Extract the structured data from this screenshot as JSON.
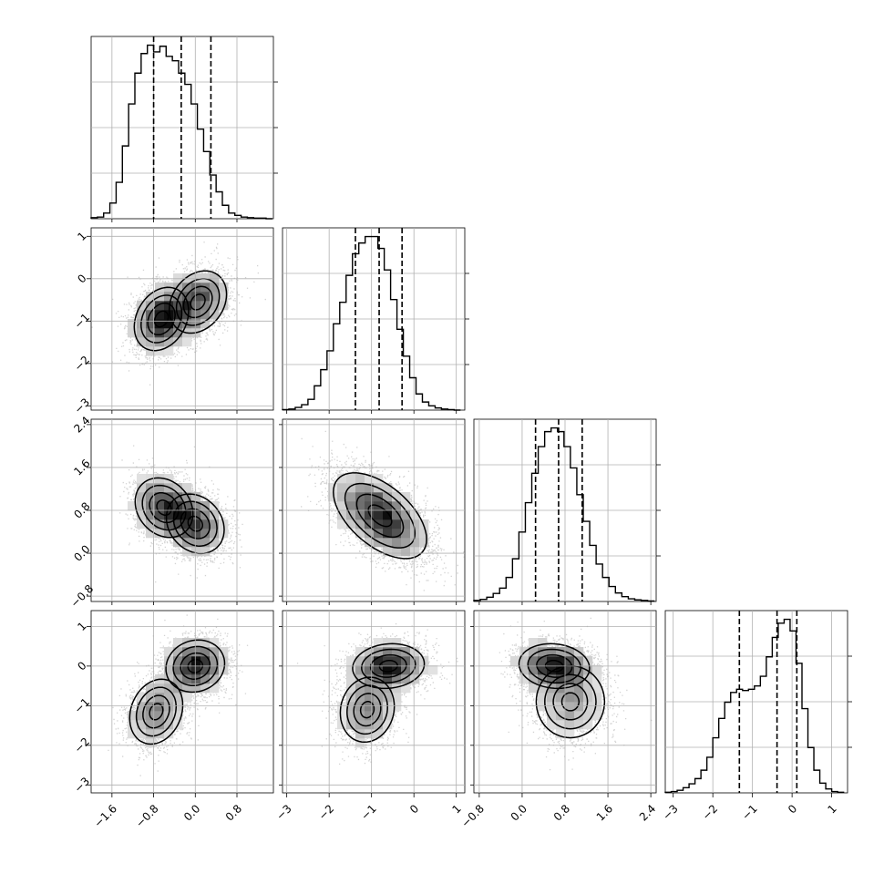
{
  "chart_data": {
    "type": "corner",
    "title": "",
    "grid": true,
    "parameters": [
      {
        "index": 0,
        "range": [
          -2.0,
          1.5
        ],
        "ticks": [
          -1.6,
          -0.8,
          0.0,
          0.8
        ],
        "tick_labels": [
          "−1.6",
          "−0.8",
          "0.0",
          "0.8"
        ],
        "quantiles": [
          -0.8,
          -0.27,
          0.3
        ],
        "histogram": {
          "bin_edges": [
            -2.0,
            -1.88,
            -1.76,
            -1.64,
            -1.52,
            -1.4,
            -1.28,
            -1.16,
            -1.04,
            -0.92,
            -0.8,
            -0.68,
            -0.56,
            -0.44,
            -0.32,
            -0.2,
            -0.08,
            0.04,
            0.16,
            0.28,
            0.4,
            0.52,
            0.64,
            0.76,
            0.88,
            1.0,
            1.12,
            1.24,
            1.36,
            1.48
          ],
          "counts": [
            2,
            3,
            10,
            28,
            65,
            130,
            205,
            260,
            295,
            310,
            298,
            308,
            290,
            282,
            260,
            240,
            205,
            160,
            120,
            78,
            48,
            24,
            10,
            6,
            3,
            2,
            1,
            1,
            0
          ]
        }
      },
      {
        "index": 1,
        "range": [
          -3.1,
          1.2
        ],
        "ticks": [
          -3,
          -2,
          -1,
          0,
          1
        ],
        "tick_labels": [
          "−3",
          "−2",
          "−1",
          "0",
          "1"
        ],
        "quantiles": [
          -1.38,
          -0.82,
          -0.28
        ],
        "histogram": {
          "bin_edges": [
            -3.1,
            -2.95,
            -2.8,
            -2.65,
            -2.5,
            -2.35,
            -2.2,
            -2.05,
            -1.9,
            -1.75,
            -1.6,
            -1.45,
            -1.3,
            -1.15,
            -1.0,
            -0.85,
            -0.7,
            -0.55,
            -0.4,
            -0.25,
            -0.1,
            0.05,
            0.2,
            0.35,
            0.5,
            0.65,
            0.8,
            0.95,
            1.1
          ],
          "counts": [
            1,
            2,
            5,
            10,
            20,
            45,
            75,
            110,
            160,
            200,
            250,
            290,
            310,
            322,
            322,
            300,
            260,
            205,
            150,
            100,
            60,
            30,
            15,
            8,
            4,
            2,
            1,
            0
          ]
        }
      },
      {
        "index": 2,
        "range": [
          -0.9,
          2.5
        ],
        "ticks": [
          -0.8,
          0.0,
          0.8,
          1.6,
          2.4
        ],
        "tick_labels": [
          "−0.8",
          "0.0",
          "0.8",
          "1.6",
          "2.4"
        ],
        "quantiles": [
          0.25,
          0.68,
          1.12
        ],
        "histogram": {
          "bin_edges": [
            -0.9,
            -0.78,
            -0.66,
            -0.54,
            -0.42,
            -0.3,
            -0.18,
            -0.06,
            0.06,
            0.18,
            0.3,
            0.42,
            0.54,
            0.66,
            0.78,
            0.9,
            1.02,
            1.14,
            1.26,
            1.38,
            1.5,
            1.62,
            1.74,
            1.86,
            1.98,
            2.1,
            2.22,
            2.34,
            2.46
          ],
          "counts": [
            2,
            4,
            8,
            15,
            25,
            45,
            80,
            130,
            185,
            240,
            290,
            318,
            325,
            318,
            290,
            250,
            200,
            150,
            105,
            70,
            45,
            28,
            16,
            9,
            5,
            3,
            2,
            1
          ]
        }
      },
      {
        "index": 3,
        "range": [
          -3.2,
          1.4
        ],
        "ticks": [
          -3,
          -2,
          -1,
          0,
          1
        ],
        "tick_labels": [
          "−3",
          "−2",
          "−1",
          "0",
          "1"
        ],
        "quantiles": [
          -1.33,
          -0.38,
          0.12
        ],
        "histogram": {
          "bin_edges": [
            -3.2,
            -3.05,
            -2.9,
            -2.75,
            -2.6,
            -2.45,
            -2.3,
            -2.15,
            -2.0,
            -1.85,
            -1.7,
            -1.55,
            -1.4,
            -1.25,
            -1.1,
            -0.95,
            -0.8,
            -0.65,
            -0.5,
            -0.35,
            -0.2,
            -0.05,
            0.1,
            0.25,
            0.4,
            0.55,
            0.7,
            0.85,
            1.0,
            1.15,
            1.3
          ],
          "counts": [
            1,
            2,
            4,
            8,
            14,
            22,
            35,
            55,
            85,
            115,
            140,
            155,
            160,
            158,
            160,
            165,
            180,
            210,
            240,
            262,
            268,
            250,
            200,
            130,
            70,
            35,
            15,
            6,
            2,
            1
          ]
        }
      }
    ],
    "pair_components": {
      "1_0": [
        {
          "weight": 0.55,
          "mean": [
            -0.65,
            -0.95
          ],
          "sigma": [
            0.28,
            0.4
          ],
          "rho": 0.25
        },
        {
          "weight": 0.45,
          "mean": [
            0.05,
            -0.55
          ],
          "sigma": [
            0.3,
            0.4
          ],
          "rho": 0.25
        }
      ],
      "2_0": [
        {
          "weight": 0.5,
          "mean": [
            -0.6,
            0.85
          ],
          "sigma": [
            0.3,
            0.3
          ],
          "rho": -0.2
        },
        {
          "weight": 0.5,
          "mean": [
            0.0,
            0.55
          ],
          "sigma": [
            0.3,
            0.3
          ],
          "rho": -0.2
        }
      ],
      "2_1": [
        {
          "weight": 1.0,
          "mean": [
            -0.8,
            0.7
          ],
          "sigma": [
            0.55,
            0.4
          ],
          "rho": -0.55
        }
      ],
      "3_0": [
        {
          "weight": 0.6,
          "mean": [
            0.0,
            0.0
          ],
          "sigma": [
            0.3,
            0.35
          ],
          "rho": 0.1
        },
        {
          "weight": 0.4,
          "mean": [
            -0.75,
            -1.15
          ],
          "sigma": [
            0.28,
            0.45
          ],
          "rho": 0.2
        }
      ],
      "3_1": [
        {
          "weight": 0.6,
          "mean": [
            -0.6,
            0.0
          ],
          "sigma": [
            0.45,
            0.3
          ],
          "rho": 0.1
        },
        {
          "weight": 0.4,
          "mean": [
            -1.1,
            -1.1
          ],
          "sigma": [
            0.35,
            0.45
          ],
          "rho": 0.1
        }
      ],
      "3_2": [
        {
          "weight": 0.6,
          "mean": [
            0.6,
            0.0
          ],
          "sigma": [
            0.35,
            0.3
          ],
          "rho": -0.1
        },
        {
          "weight": 0.4,
          "mean": [
            0.9,
            -0.9
          ],
          "sigma": [
            0.35,
            0.5
          ],
          "rho": 0.0
        }
      ]
    },
    "contour_levels_sigma": [
      0.5,
      1.0,
      1.5,
      2.0
    ],
    "colors": {
      "hist": "#000000",
      "points": "#808080",
      "density_dark": "#000000",
      "grid": "#b0b0b0"
    }
  }
}
